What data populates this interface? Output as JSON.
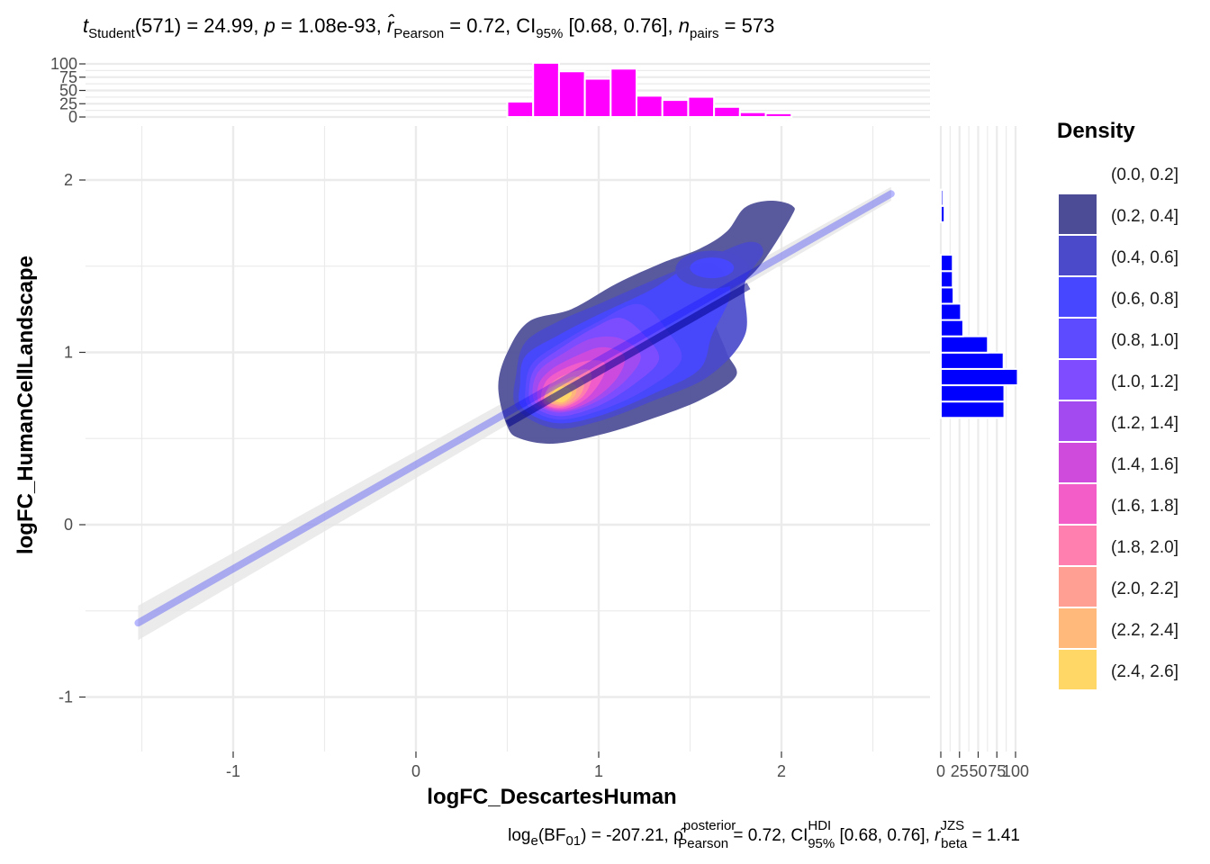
{
  "subtitle": {
    "t_label": "t",
    "t_sub": "Student",
    "t_rest": "(571) = 24.99, ",
    "p_label": "p",
    "p_rest": " = 1.08e-93, ",
    "r_label": "r̂",
    "r_sub": "Pearson",
    "r_rest": " = 0.72, CI",
    "ci_sub": "95%",
    "ci_rest": " [0.68, 0.76], ",
    "n_label": "n",
    "n_sub": "pairs",
    "n_rest": " = 573"
  },
  "caption": {
    "a": "log",
    "a_sub": "e",
    "b": "(BF",
    "b_sub": "01",
    "c": ") = -207.21, ",
    "rho": "ρ̂",
    "rho_sup": "posterior",
    "rho_sub": "Pearson",
    "d": " = 0.72, CI",
    "ci_sup": "HDI",
    "ci_sub": "95%",
    "e": " [0.68, 0.76], ",
    "r": "r",
    "r_sup": "JZS",
    "r_sub": "beta",
    "f": " = 1.41"
  },
  "colors": {
    "top_histogram": "#FF00FF",
    "right_histogram": "#0000FF",
    "regression_line": "#0000FF",
    "regression_band": "#E6E6E6",
    "gridline": "#EBEBEB",
    "density_palette": [
      "#FFFFFF",
      "#4B4B96",
      "#4A4ACB",
      "#4747FF",
      "#5D4BFF",
      "#7F4DFF",
      "#A34BF0",
      "#CF4BDC",
      "#F35DC8",
      "#FF7FAE",
      "#FF9E92",
      "#FFB97A",
      "#FFD766"
    ]
  },
  "chart_data": {
    "type": "scatter",
    "subtype": "2d density contours with linear regression and marginal histograms",
    "xlabel": "logFC_DescartesHuman",
    "ylabel": "logFC_HumanCellLandscape",
    "xlim": [
      -1.5,
      2.6
    ],
    "ylim": [
      -1.2,
      2.05
    ],
    "x_ticks": [
      "-1",
      "0",
      "1",
      "2"
    ],
    "y_ticks": [
      "-1",
      "0",
      "1",
      "2"
    ],
    "grid": true,
    "regression": {
      "x": [
        -1.52,
        2.6
      ],
      "y": [
        -0.57,
        1.92
      ],
      "ci_band_x": [
        -1.52,
        2.6
      ],
      "ci_upper": [
        -0.47,
        1.96
      ],
      "ci_lower": [
        -0.67,
        1.88
      ]
    },
    "density_contours": [
      {
        "level": "(0.2, 0.4)",
        "points": [
          [
            0.5,
            0.57
          ],
          [
            0.57,
            0.5
          ],
          [
            0.75,
            0.47
          ],
          [
            1.0,
            0.52
          ],
          [
            1.25,
            0.6
          ],
          [
            1.55,
            0.72
          ],
          [
            1.75,
            0.86
          ],
          [
            1.7,
            1.0
          ],
          [
            1.63,
            1.22
          ],
          [
            1.72,
            1.34
          ],
          [
            1.88,
            1.5
          ],
          [
            2.05,
            1.78
          ],
          [
            2.06,
            1.85
          ],
          [
            1.94,
            1.88
          ],
          [
            1.8,
            1.84
          ],
          [
            1.7,
            1.7
          ],
          [
            1.55,
            1.6
          ],
          [
            1.35,
            1.52
          ],
          [
            1.1,
            1.4
          ],
          [
            0.85,
            1.25
          ],
          [
            0.62,
            1.18
          ],
          [
            0.5,
            1.0
          ],
          [
            0.45,
            0.8
          ]
        ]
      },
      {
        "level": "(0.4, 0.6)",
        "points": [
          [
            0.55,
            0.68
          ],
          [
            0.75,
            0.56
          ],
          [
            1.0,
            0.6
          ],
          [
            1.3,
            0.72
          ],
          [
            1.6,
            0.86
          ],
          [
            1.8,
            1.1
          ],
          [
            1.8,
            1.4
          ],
          [
            1.9,
            1.58
          ],
          [
            1.82,
            1.64
          ],
          [
            1.58,
            1.54
          ],
          [
            1.3,
            1.42
          ],
          [
            1.0,
            1.28
          ],
          [
            0.78,
            1.18
          ],
          [
            0.6,
            1.06
          ],
          [
            0.55,
            0.88
          ]
        ]
      },
      {
        "level": "(0.6, 0.8)",
        "points": [
          [
            0.58,
            0.68
          ],
          [
            0.76,
            0.59
          ],
          [
            1.0,
            0.63
          ],
          [
            1.3,
            0.76
          ],
          [
            1.55,
            0.9
          ],
          [
            1.62,
            1.1
          ],
          [
            1.72,
            1.34
          ],
          [
            1.65,
            1.5
          ],
          [
            1.5,
            1.5
          ],
          [
            1.28,
            1.36
          ],
          [
            1.0,
            1.22
          ],
          [
            0.78,
            1.1
          ],
          [
            0.6,
            0.98
          ],
          [
            0.57,
            0.82
          ]
        ]
      },
      {
        "level": "(0.8, 1.0)",
        "points": [
          [
            0.62,
            0.68
          ],
          [
            0.78,
            0.61
          ],
          [
            1.0,
            0.66
          ],
          [
            1.25,
            0.78
          ],
          [
            1.45,
            0.95
          ],
          [
            1.38,
            1.12
          ],
          [
            1.22,
            1.28
          ],
          [
            1.0,
            1.18
          ],
          [
            0.8,
            1.06
          ],
          [
            0.64,
            0.94
          ],
          [
            0.6,
            0.8
          ]
        ]
      },
      {
        "level": "(1.0, 1.2)",
        "points": [
          [
            0.64,
            0.69
          ],
          [
            0.79,
            0.63
          ],
          [
            1.0,
            0.69
          ],
          [
            1.2,
            0.82
          ],
          [
            1.33,
            0.96
          ],
          [
            1.25,
            1.1
          ],
          [
            1.12,
            1.2
          ],
          [
            0.97,
            1.14
          ],
          [
            0.8,
            1.03
          ],
          [
            0.66,
            0.92
          ],
          [
            0.62,
            0.8
          ]
        ]
      },
      {
        "level": "(1.2, 1.4)",
        "points": [
          [
            0.66,
            0.7
          ],
          [
            0.79,
            0.65
          ],
          [
            0.98,
            0.71
          ],
          [
            1.15,
            0.84
          ],
          [
            1.23,
            0.98
          ],
          [
            1.12,
            1.08
          ],
          [
            0.96,
            1.08
          ],
          [
            0.8,
            0.99
          ],
          [
            0.68,
            0.9
          ],
          [
            0.64,
            0.8
          ]
        ]
      },
      {
        "level": "(1.4, 1.6)",
        "points": [
          [
            0.68,
            0.7
          ],
          [
            0.8,
            0.66
          ],
          [
            0.96,
            0.72
          ],
          [
            1.1,
            0.85
          ],
          [
            1.14,
            0.98
          ],
          [
            1.02,
            1.03
          ],
          [
            0.88,
            0.98
          ],
          [
            0.74,
            0.9
          ],
          [
            0.67,
            0.81
          ]
        ]
      },
      {
        "level": "(1.6, 1.8)",
        "points": [
          [
            0.69,
            0.71
          ],
          [
            0.8,
            0.67
          ],
          [
            0.93,
            0.73
          ],
          [
            1.02,
            0.85
          ],
          [
            1.03,
            0.94
          ],
          [
            0.93,
            0.95
          ],
          [
            0.8,
            0.9
          ],
          [
            0.71,
            0.83
          ]
        ]
      },
      {
        "level": "(1.8, 2.0)",
        "points": [
          [
            0.7,
            0.71
          ],
          [
            0.8,
            0.68
          ],
          [
            0.91,
            0.74
          ],
          [
            0.96,
            0.84
          ],
          [
            0.94,
            0.9
          ],
          [
            0.84,
            0.88
          ],
          [
            0.74,
            0.82
          ]
        ]
      },
      {
        "level": "(2.0, 2.2)",
        "points": [
          [
            0.71,
            0.72
          ],
          [
            0.8,
            0.69
          ],
          [
            0.89,
            0.74
          ],
          [
            0.92,
            0.82
          ],
          [
            0.87,
            0.86
          ],
          [
            0.78,
            0.82
          ],
          [
            0.72,
            0.78
          ]
        ]
      },
      {
        "level": "(2.2, 2.4)",
        "points": [
          [
            0.72,
            0.72
          ],
          [
            0.8,
            0.7
          ],
          [
            0.87,
            0.75
          ],
          [
            0.87,
            0.81
          ],
          [
            0.8,
            0.82
          ],
          [
            0.74,
            0.78
          ]
        ]
      },
      {
        "level": "(2.4, 2.6)",
        "points": [
          [
            0.74,
            0.73
          ],
          [
            0.8,
            0.71
          ],
          [
            0.85,
            0.75
          ],
          [
            0.84,
            0.79
          ],
          [
            0.79,
            0.8
          ],
          [
            0.75,
            0.77
          ]
        ]
      }
    ],
    "density_secondary": [
      {
        "level": "(0.4, 0.6)",
        "cx": 1.62,
        "cy": 1.48,
        "rx": 0.2,
        "ry": 0.11
      },
      {
        "level": "(0.6, 0.8)",
        "cx": 1.62,
        "cy": 1.49,
        "rx": 0.12,
        "ry": 0.06
      }
    ],
    "top_histogram": {
      "y_ticks": [
        "0",
        "25",
        "50",
        "75",
        "100"
      ],
      "ylim": [
        0,
        105
      ],
      "bin_width": 0.1414,
      "bin_starts": [
        0.5,
        0.6414,
        0.7828,
        0.9242,
        1.0656,
        1.207,
        1.3484,
        1.4898,
        1.6312,
        1.7726,
        1.914
      ],
      "counts": [
        29,
        102,
        86,
        72,
        91,
        40,
        32,
        38,
        19,
        9,
        7
      ]
    },
    "right_histogram": {
      "x_ticks": [
        "0",
        "25",
        "50",
        "75",
        "100"
      ],
      "xlim": [
        0,
        105
      ],
      "bin_height": 0.0946,
      "bin_starts": [
        0.62,
        0.7146,
        0.8092,
        0.9038,
        0.9984,
        1.093,
        1.1876,
        1.2822,
        1.3768,
        1.4714,
        1.566,
        1.6606,
        1.7552,
        1.8498
      ],
      "counts": [
        85,
        85,
        103,
        84,
        63,
        30,
        27,
        17,
        16,
        16,
        0,
        0,
        5,
        3
      ]
    },
    "legend": {
      "title": "Density",
      "position": "right",
      "entries": [
        "(0.0, 0.2]",
        "(0.2, 0.4]",
        "(0.4, 0.6]",
        "(0.6, 0.8]",
        "(0.8, 1.0]",
        "(1.0, 1.2]",
        "(1.2, 1.4]",
        "(1.4, 1.6]",
        "(1.6, 1.8]",
        "(1.8, 2.0]",
        "(2.0, 2.2]",
        "(2.2, 2.4]",
        "(2.4, 2.6]"
      ]
    }
  }
}
